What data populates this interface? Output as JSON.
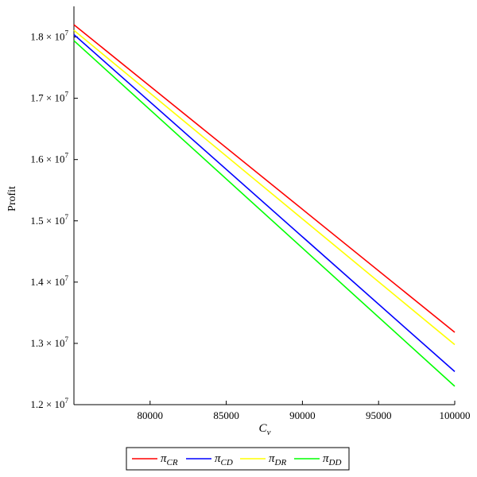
{
  "chart_data": {
    "type": "line",
    "title": "",
    "xlabel": {
      "base": "C",
      "sub": "v"
    },
    "ylabel": "Profit",
    "xlim": [
      75000,
      100000
    ],
    "ylim": [
      12000000,
      18500000
    ],
    "x_ticks": [
      {
        "value": 80000,
        "label": "80000"
      },
      {
        "value": 85000,
        "label": "85000"
      },
      {
        "value": 90000,
        "label": "90000"
      },
      {
        "value": 95000,
        "label": "95000"
      },
      {
        "value": 100000,
        "label": "100000"
      }
    ],
    "y_ticks": [
      {
        "value": 12000000,
        "mantissa": "1.2",
        "times": " × 10",
        "exp": "7"
      },
      {
        "value": 13000000,
        "mantissa": "1.3",
        "times": " × 10",
        "exp": "7"
      },
      {
        "value": 14000000,
        "mantissa": "1.4",
        "times": " × 10",
        "exp": "7"
      },
      {
        "value": 15000000,
        "mantissa": "1.5",
        "times": " × 10",
        "exp": "7"
      },
      {
        "value": 16000000,
        "mantissa": "1.6",
        "times": " × 10",
        "exp": "7"
      },
      {
        "value": 17000000,
        "mantissa": "1.7",
        "times": " × 10",
        "exp": "7"
      },
      {
        "value": 18000000,
        "mantissa": "1.8",
        "times": " × 10",
        "exp": "7"
      }
    ],
    "x": [
      75000,
      100000
    ],
    "series": [
      {
        "name": "π",
        "sub": "CR",
        "color": "#ff0000",
        "values": [
          18200000,
          13180000
        ]
      },
      {
        "name": "π",
        "sub": "CD",
        "color": "#0000ff",
        "values": [
          18040000,
          12540000
        ]
      },
      {
        "name": "π",
        "sub": "DR",
        "color": "#ffff00",
        "values": [
          18110000,
          12980000
        ]
      },
      {
        "name": "π",
        "sub": "DD",
        "color": "#00ff00",
        "values": [
          17940000,
          12300000
        ]
      }
    ],
    "grid": false,
    "legend_position": "bottom"
  }
}
